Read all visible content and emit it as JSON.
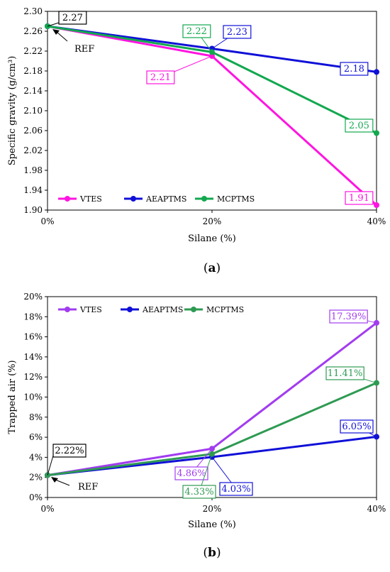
{
  "chart_data": [
    {
      "id": "a",
      "type": "line",
      "panel_label": "a",
      "xlabel": "Silane (%)",
      "ylabel": "Specific gravity (g/cm³)",
      "ylim": [
        1.9,
        2.3
      ],
      "ystep": 0.04,
      "ydecimals": 2,
      "ysuffix": "",
      "categories": [
        "0%",
        "20%",
        "40%"
      ],
      "x": [
        0,
        20,
        40
      ],
      "legend_position": "bottom-left",
      "annotation": "REF",
      "series": [
        {
          "name": "VTES",
          "color": "#ff14e0",
          "values": [
            2.27,
            2.21,
            1.91
          ],
          "labels": [
            null,
            "2.21",
            "1.91"
          ]
        },
        {
          "name": "AEAPTMS",
          "color": "#1010d8",
          "values": [
            2.27,
            2.225,
            2.178
          ],
          "labels": [
            null,
            "2.23",
            "2.18"
          ]
        },
        {
          "name": "MCPTMS",
          "color": "#13a84f",
          "values": [
            2.27,
            2.218,
            2.055
          ],
          "labels": [
            null,
            "2.22",
            "2.05"
          ]
        }
      ],
      "shared_label": {
        "text": "2.27",
        "color": "#000000"
      }
    },
    {
      "id": "b",
      "type": "line",
      "panel_label": "b",
      "xlabel": "Silane (%)",
      "ylabel": "Trapped air (%)",
      "ylim": [
        0,
        20
      ],
      "ystep": 2,
      "ydecimals": 0,
      "ysuffix": "%",
      "categories": [
        "0%",
        "20%",
        "40%"
      ],
      "x": [
        0,
        20,
        40
      ],
      "legend_position": "top-left",
      "annotation": "REF",
      "series": [
        {
          "name": "VTES",
          "color": "#a23cf0",
          "values": [
            2.22,
            4.86,
            17.39
          ],
          "labels": [
            null,
            "4.86%",
            "17.39%"
          ]
        },
        {
          "name": "AEAPTMS",
          "color": "#1010d8",
          "values": [
            2.22,
            4.03,
            6.05
          ],
          "labels": [
            null,
            "4.03%",
            "6.05%"
          ]
        },
        {
          "name": "MCPTMS",
          "color": "#2e9a52",
          "values": [
            2.22,
            4.33,
            11.41
          ],
          "labels": [
            null,
            "4.33%",
            "11.41%"
          ]
        }
      ],
      "shared_label": {
        "text": "2.22%",
        "color": "#000000"
      }
    }
  ]
}
